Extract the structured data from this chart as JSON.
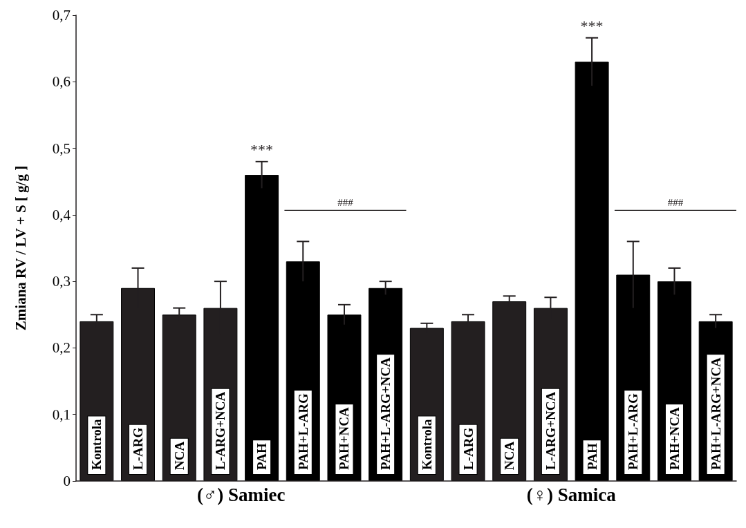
{
  "chart_data": {
    "type": "bar",
    "ylabel": "Zmiana RV / LV + S [ g/g ]",
    "categories": [
      "Kontrola",
      "L-ARG",
      "NCA",
      "L-ARG+NCA",
      "PAH",
      "PAH+L-ARG",
      "PAH+NCA",
      "PAH+L-ARG+NCA",
      "Kontrola",
      "L-ARG",
      "NCA",
      "L-ARG+NCA",
      "PAH",
      "PAH+L-ARG",
      "PAH+NCA",
      "PAH+L-ARG+NCA"
    ],
    "values": [
      0.24,
      0.29,
      0.25,
      0.26,
      0.46,
      0.33,
      0.25,
      0.29,
      0.23,
      0.24,
      0.27,
      0.26,
      0.63,
      0.31,
      0.3,
      0.24
    ],
    "errors": [
      0.01,
      0.03,
      0.01,
      0.04,
      0.02,
      0.03,
      0.015,
      0.01,
      0.007,
      0.01,
      0.008,
      0.016,
      0.036,
      0.05,
      0.02,
      0.01
    ],
    "colors": [
      "#231f20",
      "#231f20",
      "#231f20",
      "#231f20",
      "#000000",
      "#000000",
      "#000000",
      "#000000",
      "#231f20",
      "#231f20",
      "#231f20",
      "#231f20",
      "#000000",
      "#000000",
      "#000000",
      "#000000"
    ],
    "value_labels": [
      null,
      null,
      null,
      null,
      "***",
      null,
      null,
      null,
      null,
      null,
      null,
      null,
      "***",
      null,
      null,
      null
    ],
    "annotations": [
      "###",
      "###",
      "(♂) Samiec",
      "(♀) Samica"
    ],
    "ylim": [
      0,
      0.7
    ],
    "yticks": [
      0,
      {
        "value": 0.1,
        "label": "0,1"
      },
      {
        "value": 0.2,
        "label": "0,2"
      },
      {
        "value": 0.3,
        "label": "0,3"
      },
      {
        "value": 0.4,
        "label": "0,4"
      },
      {
        "value": 0.5,
        "label": "0,5"
      },
      {
        "value": 0.6,
        "label": "0,6"
      },
      {
        "value": 0.7,
        "label": "0,7"
      }
    ],
    "grid": false
  }
}
